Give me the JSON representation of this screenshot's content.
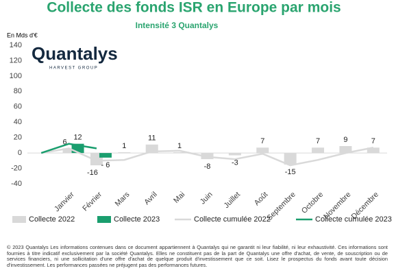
{
  "chart_data": {
    "type": "bar-line",
    "title": "Collecte des fonds ISR en Europe par mois",
    "subtitle": "Intensité 3 Quantalys",
    "y_label": "En Mds d'€",
    "logo": "Quantalys",
    "logo_tagline": "HARVEST GROUP",
    "categories": [
      null,
      "Janvier",
      "Février",
      "Mars",
      "Avril",
      "Mai",
      "Juin",
      "Juillet",
      "Août",
      "Septembre",
      "Octobre",
      "Novembre",
      "Décembre"
    ],
    "series": [
      {
        "name": "Collecte 2022",
        "kind": "bar",
        "color": "#d9d9d9",
        "values": [
          null,
          6,
          -16,
          1,
          11,
          1,
          -8,
          -3,
          7,
          -15,
          7,
          9,
          7
        ]
      },
      {
        "name": "Collecte 2023",
        "kind": "bar",
        "color": "#1a9e6e",
        "values": [
          null,
          12,
          -6,
          null,
          null,
          null,
          null,
          null,
          null,
          null,
          null,
          null,
          null
        ],
        "value_labels": [
          null,
          "12",
          "- 6",
          null,
          null,
          null,
          null,
          null,
          null,
          null,
          null,
          null,
          null
        ]
      },
      {
        "name": "Collecte cumulée 2022",
        "kind": "line",
        "color": "#d9d9d9",
        "values": [
          0,
          6,
          -10,
          -9,
          2,
          3,
          -5,
          -8,
          -1,
          -16,
          -9,
          0,
          7
        ]
      },
      {
        "name": "Collecte cumulée 2023",
        "kind": "line",
        "color": "#1a9e6e",
        "values": [
          0,
          12,
          6,
          null,
          null,
          null,
          null,
          null,
          null,
          null,
          null,
          null,
          null
        ]
      }
    ],
    "ylim": [
      -40,
      140
    ],
    "yticks": [
      -40,
      -20,
      0,
      20,
      40,
      60,
      80,
      100,
      120,
      140
    ],
    "legend": "bottom",
    "footer": "© 2023 Quantalys Les informations contenues dans ce document appartiennent à Quantalys qui ne garantit ni leur fiabilité, ni leur exhaustivité. Ces informations sont fournies à titre indicatif exclusivement par la société Quantalys. Elles ne constituent pas de la part de Quantalys une offre d'achat, de vente, de souscription ou de services financiers, ni une sollicitation d'une offre d'achat de quelque produit d'investissement que ce soit. Lisez le prospectus du fonds avant toute décision d'investissement. Les performances passées ne préjugent pas des performances futures."
  }
}
